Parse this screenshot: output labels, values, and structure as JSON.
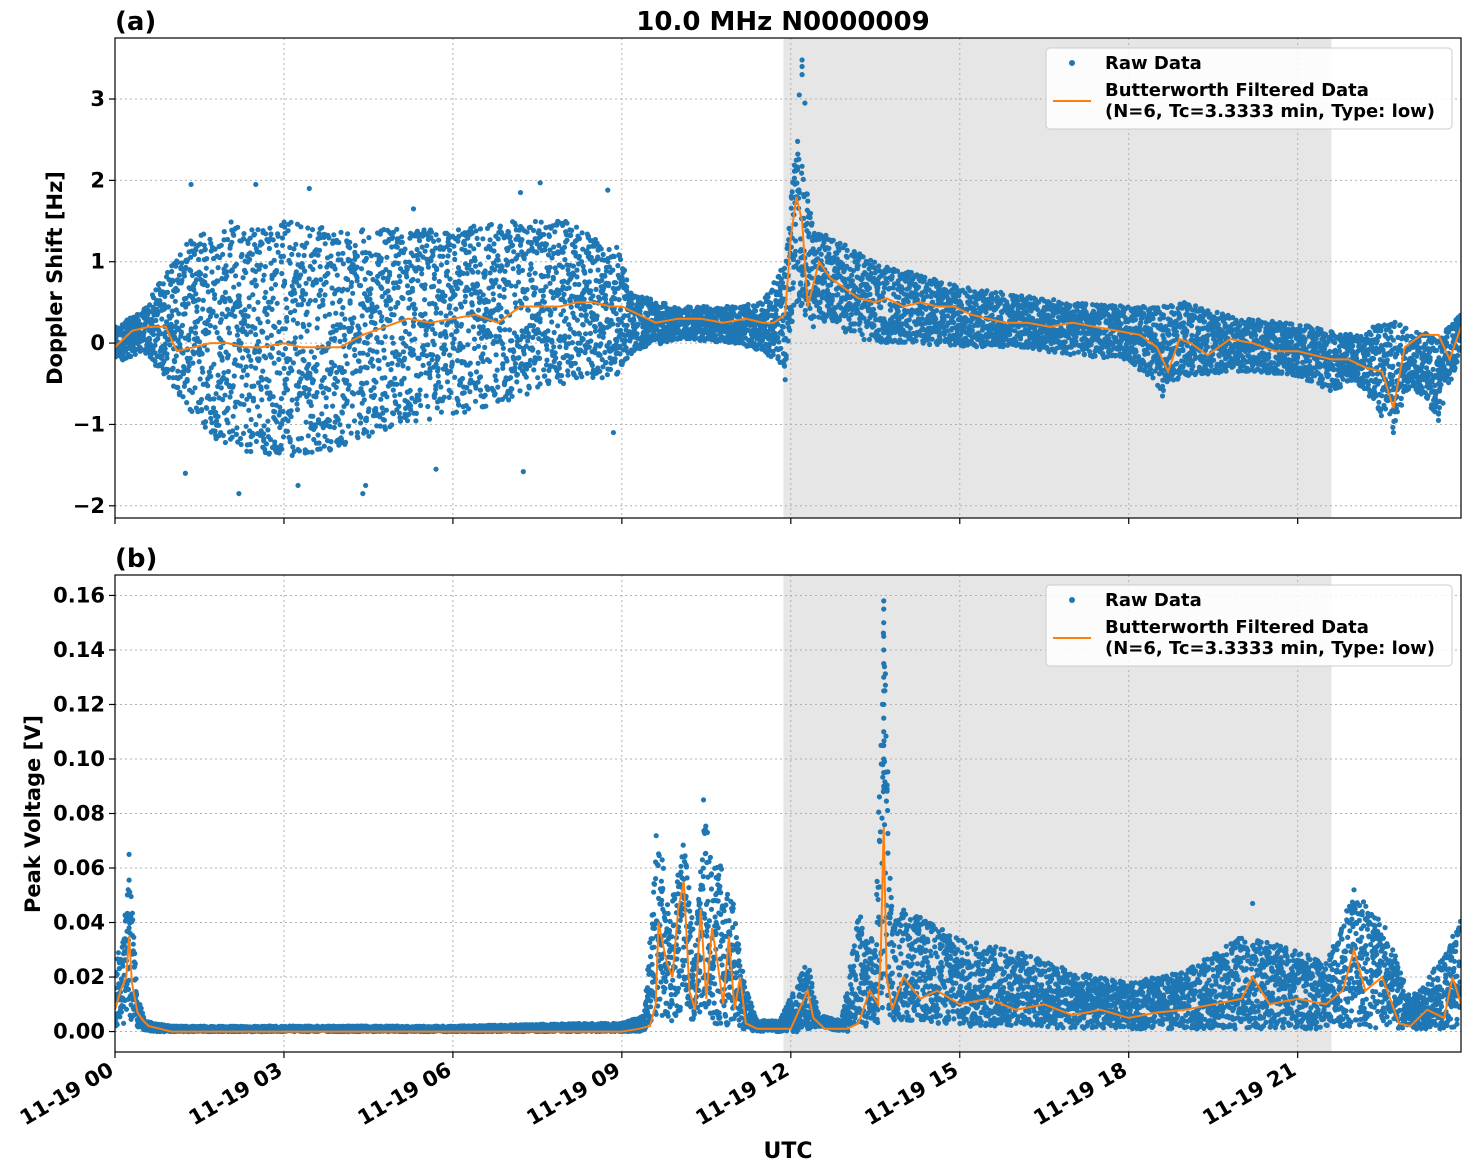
{
  "figure": {
    "title": "10.0 MHz N0000009",
    "xlabel": "UTC",
    "x_tick_labels": [
      "11-19 00",
      "11-19 03",
      "11-19 06",
      "11-19 09",
      "11-19 12",
      "11-19 15",
      "11-19 18",
      "11-19 21"
    ]
  },
  "legend": {
    "raw_label": "Raw Data",
    "filtered_label_line1": "Butterworth Filtered Data",
    "filtered_label_line2": "(N=6, Tc=3.3333 min, Type: low)"
  },
  "colors": {
    "raw": "#1f77b4",
    "filtered": "#ff7f0e",
    "shade": "#e6e6e6",
    "grid": "#b0b0b0"
  },
  "chart_data": [
    {
      "type": "scatter",
      "panel_label": "(a)",
      "title": "10.0 MHz N0000009",
      "xlabel": "",
      "ylabel": "Doppler Shift [Hz]",
      "x_unit": "hours UTC on 11-19",
      "xlim": [
        0,
        23.9
      ],
      "ylim": [
        -2.15,
        3.75
      ],
      "y_ticks": [
        -2,
        -1,
        0,
        1,
        2,
        3
      ],
      "y_tick_labels": [
        "−2",
        "−1",
        "0",
        "1",
        "2",
        "3"
      ],
      "grid": true,
      "legend_position": "top-right",
      "shaded_interval": [
        11.87,
        21.6
      ],
      "series": [
        {
          "name": "Raw Data",
          "kind": "scatter",
          "envelope": {
            "x": [
              0,
              0.5,
              1,
              1.5,
              2,
              3,
              4,
              5,
              6,
              7,
              8,
              8.9,
              9.2,
              10,
              11,
              11.5,
              11.9,
              12.1,
              12.4,
              12.7,
              13,
              13.5,
              14,
              15,
              16,
              17,
              18,
              18.6,
              19,
              20,
              21,
              21.6,
              22,
              22.7,
              23,
              23.5,
              23.9
            ],
            "y_min": [
              -0.25,
              -0.1,
              -0.5,
              -1.0,
              -1.3,
              -1.4,
              -1.3,
              -1.0,
              -0.9,
              -0.7,
              -0.5,
              -0.4,
              -0.1,
              0.05,
              0.0,
              -0.1,
              -0.3,
              0.5,
              0.2,
              0.3,
              0.1,
              0.0,
              0.0,
              -0.05,
              -0.05,
              -0.15,
              -0.2,
              -0.6,
              -0.4,
              -0.35,
              -0.4,
              -0.6,
              -0.45,
              -1.1,
              -0.5,
              -0.9,
              -0.1
            ],
            "y_max": [
              0.2,
              0.4,
              1.0,
              1.4,
              1.5,
              1.5,
              1.4,
              1.4,
              1.4,
              1.5,
              1.5,
              1.2,
              0.6,
              0.45,
              0.45,
              0.5,
              1.0,
              2.6,
              1.4,
              1.3,
              1.2,
              1.0,
              0.9,
              0.7,
              0.6,
              0.5,
              0.45,
              0.45,
              0.5,
              0.3,
              0.25,
              0.15,
              0.1,
              0.3,
              0.15,
              0.1,
              0.35
            ]
          },
          "outliers": [
            [
              1.35,
              1.95
            ],
            [
              2.5,
              1.95
            ],
            [
              3.45,
              1.9
            ],
            [
              5.3,
              1.65
            ],
            [
              7.2,
              1.85
            ],
            [
              7.55,
              1.97
            ],
            [
              8.75,
              1.88
            ],
            [
              12.2,
              3.48
            ],
            [
              12.2,
              3.4
            ],
            [
              12.2,
              3.3
            ],
            [
              12.15,
              3.05
            ],
            [
              12.25,
              2.95
            ],
            [
              1.25,
              -1.6
            ],
            [
              2.2,
              -1.85
            ],
            [
              3.25,
              -1.75
            ],
            [
              4.4,
              -1.85
            ],
            [
              4.45,
              -1.75
            ],
            [
              5.7,
              -1.55
            ],
            [
              7.25,
              -1.58
            ],
            [
              8.85,
              -1.1
            ],
            [
              11.9,
              -0.45
            ],
            [
              18.6,
              -0.65
            ],
            [
              22.7,
              -1.1
            ],
            [
              23.5,
              -0.95
            ]
          ]
        },
        {
          "name": "Butterworth Filtered Data\n(N=6, Tc=3.3333 min, Type: low)",
          "kind": "line",
          "x": [
            0,
            0.3,
            0.6,
            0.9,
            1.1,
            1.4,
            1.7,
            2.0,
            2.3,
            2.6,
            3.0,
            3.3,
            3.6,
            4.0,
            4.4,
            4.8,
            5.2,
            5.6,
            6.0,
            6.4,
            6.8,
            7.2,
            7.6,
            7.9,
            8.2,
            8.5,
            8.8,
            9.0,
            9.3,
            9.6,
            10.0,
            10.4,
            10.8,
            11.2,
            11.5,
            11.7,
            11.9,
            12.0,
            12.1,
            12.2,
            12.3,
            12.5,
            12.7,
            12.9,
            13.2,
            13.5,
            13.7,
            14.0,
            14.3,
            14.6,
            14.9,
            15.2,
            15.5,
            15.8,
            16.2,
            16.6,
            17.0,
            17.4,
            17.8,
            18.2,
            18.5,
            18.7,
            18.9,
            19.1,
            19.4,
            19.8,
            20.2,
            20.6,
            21.0,
            21.3,
            21.6,
            21.9,
            22.2,
            22.5,
            22.7,
            22.9,
            23.2,
            23.5,
            23.7,
            23.9
          ],
          "y": [
            -0.05,
            0.15,
            0.2,
            0.2,
            -0.1,
            -0.05,
            0.0,
            0.0,
            -0.05,
            -0.05,
            0.0,
            -0.05,
            -0.05,
            -0.05,
            0.1,
            0.2,
            0.3,
            0.25,
            0.3,
            0.35,
            0.25,
            0.45,
            0.45,
            0.45,
            0.5,
            0.5,
            0.45,
            0.45,
            0.35,
            0.25,
            0.3,
            0.3,
            0.25,
            0.3,
            0.25,
            0.25,
            0.35,
            1.3,
            1.8,
            1.5,
            0.45,
            1.0,
            0.8,
            0.7,
            0.55,
            0.5,
            0.55,
            0.45,
            0.5,
            0.45,
            0.45,
            0.35,
            0.3,
            0.25,
            0.25,
            0.2,
            0.25,
            0.2,
            0.15,
            0.1,
            -0.05,
            -0.35,
            0.05,
            0.0,
            -0.15,
            0.05,
            0.0,
            -0.1,
            -0.1,
            -0.15,
            -0.2,
            -0.2,
            -0.3,
            -0.35,
            -0.8,
            -0.05,
            0.1,
            0.1,
            -0.2,
            0.2
          ]
        }
      ]
    },
    {
      "type": "scatter",
      "panel_label": "(b)",
      "title": "",
      "xlabel": "UTC",
      "ylabel": "Peak Voltage [V]",
      "x_unit": "hours UTC on 11-19",
      "xlim": [
        0,
        23.9
      ],
      "ylim": [
        -0.0075,
        0.1675
      ],
      "y_ticks": [
        0.0,
        0.02,
        0.04,
        0.06,
        0.08,
        0.1,
        0.12,
        0.14,
        0.16
      ],
      "y_tick_labels": [
        "0.00",
        "0.02",
        "0.04",
        "0.06",
        "0.08",
        "0.10",
        "0.12",
        "0.14",
        "0.16"
      ],
      "grid": true,
      "legend_position": "top-right",
      "shaded_interval": [
        11.87,
        21.6
      ],
      "series": [
        {
          "name": "Raw Data",
          "kind": "scatter",
          "envelope": {
            "x": [
              0,
              0.15,
              0.25,
              0.4,
              0.55,
              0.7,
              1.0,
              6.0,
              8.4,
              9.0,
              9.4,
              9.6,
              9.7,
              9.9,
              10.1,
              10.3,
              10.45,
              10.6,
              10.8,
              11.0,
              11.2,
              11.4,
              11.8,
              12.3,
              12.5,
              12.9,
              13.2,
              13.5,
              13.65,
              13.8,
              14.0,
              14.5,
              15.0,
              16.0,
              17.0,
              18.0,
              19.0,
              20.0,
              21.0,
              21.5,
              22.0,
              22.5,
              23.0,
              23.5,
              23.9
            ],
            "y_min": [
              0.002,
              0.002,
              0.003,
              0.001,
              0.0005,
              0.0,
              0.0,
              0.0,
              0.0,
              0.0,
              0.0,
              0.003,
              0.005,
              0.003,
              0.008,
              0.002,
              0.004,
              0.003,
              0.002,
              0.003,
              0.0,
              0.0,
              0.0,
              0.0,
              0.002,
              0.0,
              0.0,
              0.003,
              0.004,
              0.004,
              0.004,
              0.003,
              0.002,
              0.002,
              0.001,
              0.001,
              0.001,
              0.001,
              0.001,
              0.001,
              0.002,
              0.001,
              0.001,
              0.001,
              0.002
            ],
            "y_max": [
              0.025,
              0.035,
              0.065,
              0.013,
              0.004,
              0.003,
              0.002,
              0.002,
              0.003,
              0.003,
              0.006,
              0.075,
              0.065,
              0.05,
              0.072,
              0.03,
              0.085,
              0.06,
              0.062,
              0.045,
              0.016,
              0.004,
              0.004,
              0.026,
              0.006,
              0.004,
              0.044,
              0.032,
              0.16,
              0.04,
              0.045,
              0.04,
              0.034,
              0.03,
              0.022,
              0.018,
              0.022,
              0.035,
              0.03,
              0.025,
              0.052,
              0.042,
              0.012,
              0.025,
              0.042
            ]
          },
          "outliers": [
            [
              0.25,
              0.065
            ],
            [
              10.45,
              0.085
            ],
            [
              13.65,
              0.158
            ],
            [
              13.65,
              0.155
            ],
            [
              13.65,
              0.15
            ],
            [
              13.65,
              0.145
            ],
            [
              13.65,
              0.14
            ],
            [
              13.65,
              0.135
            ],
            [
              13.65,
              0.13
            ],
            [
              13.65,
              0.125
            ],
            [
              13.65,
              0.12
            ],
            [
              13.65,
              0.115
            ],
            [
              13.65,
              0.11
            ],
            [
              13.65,
              0.105
            ],
            [
              13.65,
              0.1
            ],
            [
              13.65,
              0.095
            ],
            [
              13.65,
              0.09
            ],
            [
              20.2,
              0.047
            ],
            [
              22.0,
              0.052
            ]
          ]
        },
        {
          "name": "Butterworth Filtered Data\n(N=6, Tc=3.3333 min, Type: low)",
          "kind": "line",
          "x": [
            0,
            0.1,
            0.2,
            0.25,
            0.3,
            0.4,
            0.5,
            0.6,
            0.8,
            1.0,
            9.0,
            9.3,
            9.5,
            9.6,
            9.65,
            9.8,
            9.9,
            10.0,
            10.1,
            10.2,
            10.3,
            10.4,
            10.5,
            10.6,
            10.7,
            10.8,
            10.9,
            11.0,
            11.1,
            11.2,
            11.4,
            11.8,
            12.0,
            12.3,
            12.4,
            12.6,
            13.0,
            13.2,
            13.4,
            13.55,
            13.6,
            13.65,
            13.7,
            13.8,
            14.0,
            14.3,
            14.6,
            15.0,
            15.5,
            16.0,
            16.5,
            17.0,
            17.5,
            18.0,
            18.5,
            19.0,
            19.5,
            20.0,
            20.2,
            20.5,
            21.0,
            21.5,
            21.8,
            22.0,
            22.2,
            22.5,
            22.8,
            23.0,
            23.3,
            23.6,
            23.75,
            23.9
          ],
          "y": [
            0.008,
            0.015,
            0.02,
            0.035,
            0.018,
            0.007,
            0.004,
            0.002,
            0.001,
            0.0,
            0.0,
            0.001,
            0.002,
            0.01,
            0.04,
            0.025,
            0.02,
            0.045,
            0.055,
            0.015,
            0.008,
            0.045,
            0.012,
            0.038,
            0.025,
            0.01,
            0.035,
            0.008,
            0.02,
            0.003,
            0.001,
            0.001,
            0.001,
            0.015,
            0.005,
            0.001,
            0.001,
            0.003,
            0.015,
            0.01,
            0.03,
            0.075,
            0.02,
            0.008,
            0.02,
            0.012,
            0.015,
            0.01,
            0.012,
            0.008,
            0.01,
            0.006,
            0.008,
            0.005,
            0.007,
            0.008,
            0.01,
            0.012,
            0.02,
            0.01,
            0.012,
            0.01,
            0.015,
            0.03,
            0.015,
            0.02,
            0.003,
            0.002,
            0.008,
            0.005,
            0.02,
            0.01
          ]
        }
      ]
    }
  ]
}
